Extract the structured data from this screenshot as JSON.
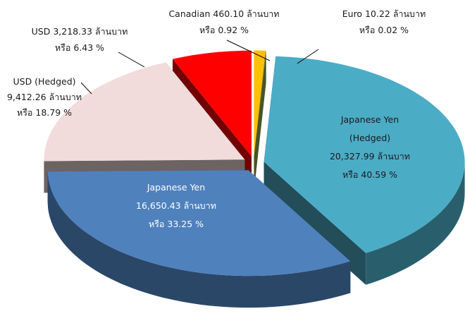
{
  "chart_data": {
    "type": "pie",
    "categories": [
      "Canadian",
      "Euro",
      "Japanese Yen (Hedged)",
      "Japanese Yen",
      "USD (Hedged)",
      "USD"
    ],
    "amount_labels": [
      "460.10 ล้านบาท",
      "10.22 ล้านบาท",
      "20,327.99 ล้านบาท",
      "16,650.43 ล้านบาท",
      "9,412.26 ล้านบาท",
      "3,218.33 ล้านบาท"
    ],
    "values": [
      0.92,
      0.02,
      40.59,
      33.25,
      18.79,
      6.43
    ],
    "value_labels": [
      "หรือ 0.92 %",
      "หรือ 0.02 %",
      "หรือ 40.59 %",
      "หรือ 33.25 %",
      "หรือ 18.79 %",
      "หรือ 6.43 %"
    ],
    "colors": [
      "#ffc000",
      "#9bbb59",
      "#4bacc6",
      "#4f81bd",
      "#f2dcdb",
      "#ff0000"
    ]
  }
}
